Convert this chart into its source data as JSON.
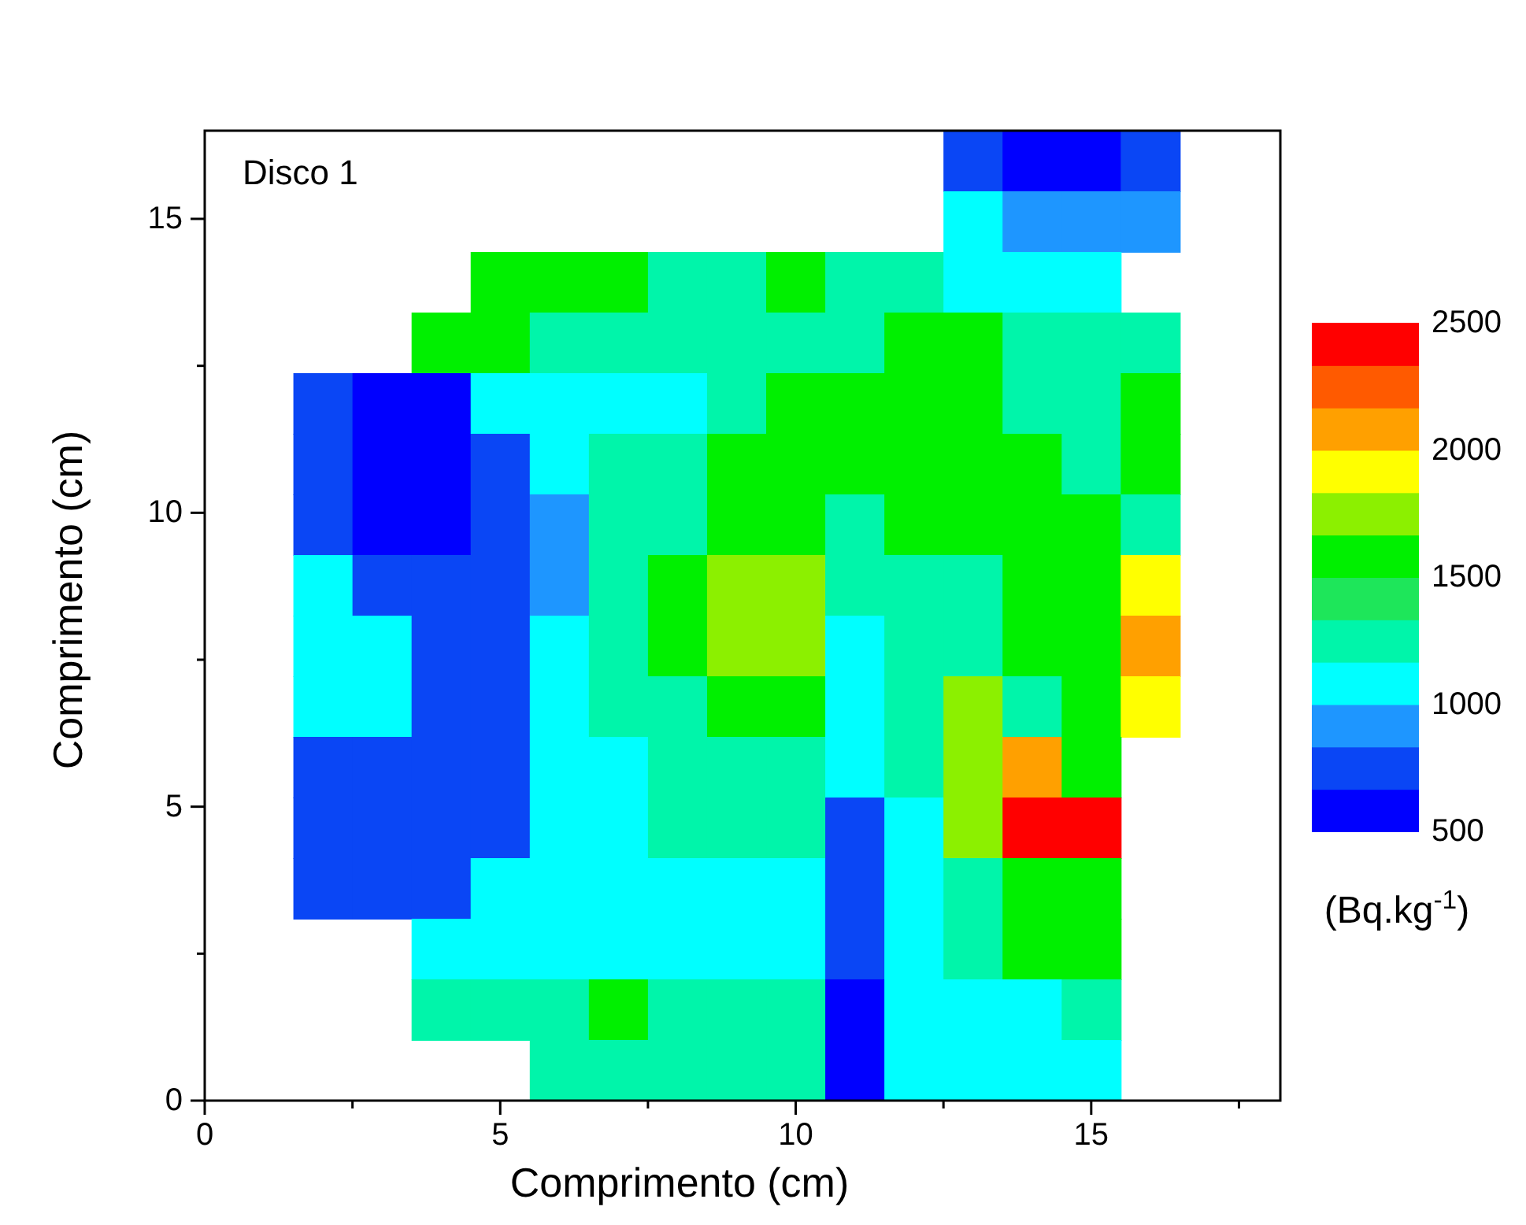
{
  "chart_data": {
    "type": "heatmap",
    "xlabel": "Comprimento (cm)",
    "ylabel": "Comprimento (cm)",
    "clabel": "(Bq.kg$^{-1}$)",
    "annotations": [
      "Disco 1"
    ],
    "x": [
      2,
      3,
      4,
      5,
      6,
      7,
      8,
      9,
      10,
      11,
      12,
      13,
      14,
      15,
      16
    ],
    "cells": [
      [
        null,
        null,
        null,
        null,
        null,
        null,
        null,
        null,
        null,
        null,
        null,
        750,
        600,
        600,
        750
      ],
      [
        null,
        null,
        null,
        null,
        null,
        null,
        null,
        null,
        null,
        null,
        null,
        1080,
        920,
        920,
        920
      ],
      [
        null,
        null,
        null,
        1580,
        1580,
        1580,
        1250,
        1250,
        1580,
        1250,
        1250,
        1080,
        1080,
        1080,
        null
      ],
      [
        null,
        null,
        1580,
        1580,
        1250,
        1250,
        1250,
        1250,
        1250,
        1250,
        1580,
        1580,
        1250,
        1250,
        1250
      ],
      [
        750,
        600,
        600,
        1080,
        1080,
        1080,
        1080,
        1250,
        1580,
        1580,
        1580,
        1580,
        1250,
        1250,
        1580
      ],
      [
        750,
        600,
        600,
        750,
        1080,
        1250,
        1250,
        1580,
        1580,
        1580,
        1580,
        1580,
        1580,
        1250,
        1580
      ],
      [
        750,
        600,
        600,
        750,
        920,
        1250,
        1250,
        1580,
        1580,
        1250,
        1580,
        1580,
        1580,
        1580,
        1250
      ],
      [
        1080,
        750,
        750,
        750,
        920,
        1250,
        1580,
        1750,
        1750,
        1250,
        1250,
        1250,
        1580,
        1580,
        1920
      ],
      [
        1080,
        1080,
        750,
        750,
        1080,
        1250,
        1580,
        1750,
        1750,
        1080,
        1250,
        1250,
        1580,
        1580,
        2080
      ],
      [
        1080,
        1080,
        750,
        750,
        1080,
        1250,
        1250,
        1580,
        1580,
        1080,
        1250,
        1750,
        1250,
        1580,
        1920
      ],
      [
        750,
        750,
        750,
        750,
        1080,
        1080,
        1250,
        1250,
        1250,
        1080,
        1250,
        1750,
        2080,
        1580,
        null
      ],
      [
        750,
        750,
        750,
        750,
        1080,
        1080,
        1250,
        1250,
        1250,
        750,
        1080,
        1750,
        2420,
        2420,
        null
      ],
      [
        750,
        750,
        750,
        1080,
        1080,
        1080,
        1080,
        1080,
        1080,
        750,
        1080,
        1250,
        1580,
        1580,
        null
      ],
      [
        null,
        null,
        1080,
        1080,
        1080,
        1080,
        1080,
        1080,
        1080,
        750,
        1080,
        1250,
        1580,
        1580,
        null
      ],
      [
        null,
        null,
        1250,
        1250,
        1250,
        1580,
        1250,
        1250,
        1250,
        600,
        1080,
        1080,
        1080,
        1250,
        null
      ],
      [
        null,
        null,
        null,
        null,
        1250,
        1250,
        1250,
        1250,
        1250,
        600,
        1080,
        1080,
        1080,
        1080,
        null
      ]
    ],
    "colors": [
      "#0000ff",
      "#0a46f5",
      "#1e96ff",
      "#00ffff",
      "#00f5aa",
      "#1ee65a",
      "#00f000",
      "#8cf000",
      "#ffff00",
      "#ffa000",
      "#ff5a00",
      "#ff0000"
    ],
    "clim": [
      500,
      2500
    ],
    "cticks": [
      500,
      1000,
      1500,
      2000,
      2500
    ],
    "xlim": [
      0,
      18.2
    ],
    "ylim": [
      0,
      16.5
    ],
    "xticks": [
      0,
      {
        "value": 2.5,
        "label": null
      },
      5,
      {
        "value": 7.5,
        "label": null
      },
      10,
      {
        "value": 12.5,
        "label": null
      },
      15,
      {
        "value": 17.5,
        "label": null
      }
    ],
    "yticks": [
      0,
      {
        "value": 2.5,
        "label": null
      },
      5,
      {
        "value": 7.5,
        "label": null
      },
      10,
      {
        "value": 12.5,
        "label": null
      },
      15
    ]
  }
}
